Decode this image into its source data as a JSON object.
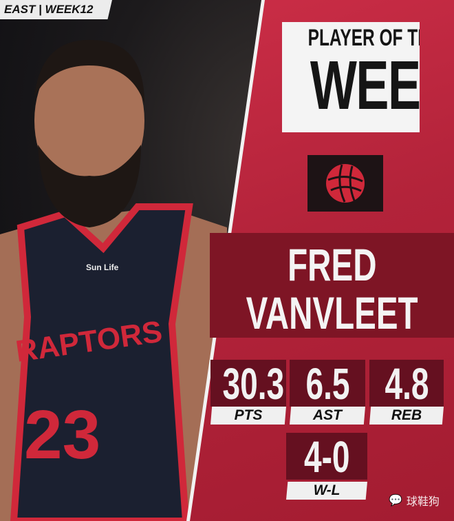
{
  "header_tag": "EAST | WEEK12",
  "title": {
    "line1": "PLAYER OF THE",
    "line2": "WEEK"
  },
  "team_logo": "raptors-basketball-logo",
  "player": {
    "first_name": "FRED",
    "last_name": "VANVLEET",
    "jersey_team": "RAPTORS",
    "jersey_number": "23",
    "jersey_sponsor": "Sun Life"
  },
  "stats": [
    {
      "value": "30.3",
      "label": "PTS"
    },
    {
      "value": "6.5",
      "label": "AST"
    },
    {
      "value": "4.8",
      "label": "REB"
    },
    {
      "value": "4-0",
      "label": "W-L"
    }
  ],
  "watermark": "球鞋狗",
  "colors": {
    "panel_red": "#b3233a",
    "dark_red": "#651020",
    "jersey": "#1b2030",
    "accent_red": "#d0283a"
  }
}
